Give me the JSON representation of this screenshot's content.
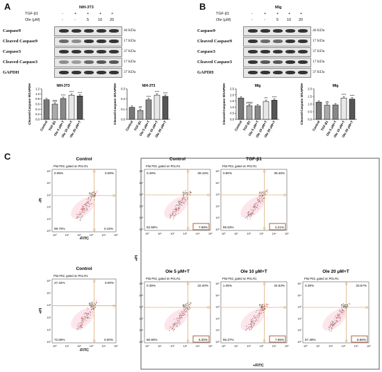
{
  "panel_labels": {
    "a": "A",
    "b": "B",
    "c": "C"
  },
  "western_a": {
    "cell": "NIH-3T3",
    "treatments": [
      {
        "label": "TGF-β1",
        "values": [
          "-",
          "+",
          "+",
          "+",
          "+"
        ]
      },
      {
        "label": "Ole (μM)",
        "values": [
          "-",
          "-",
          "5",
          "10",
          "20"
        ]
      }
    ],
    "rows": [
      {
        "label": "Caspase9",
        "kda": "46 KDa"
      },
      {
        "label": "Cleaved Caspase9",
        "kda": "17 KDa"
      },
      {
        "label": "Caspase3",
        "kda": "37 KDa"
      },
      {
        "label": "Cleaved Caspase3",
        "kda": "17 KDa"
      },
      {
        "label": "GAPDH",
        "kda": "37 KDa"
      }
    ]
  },
  "western_b": {
    "cell": "Mlg",
    "treatments": [
      {
        "label": "TGF-β1",
        "values": [
          "-",
          "+",
          "+",
          "+",
          "+"
        ]
      },
      {
        "label": "Ole (μM)",
        "values": [
          "-",
          "-",
          "5",
          "10",
          "20"
        ]
      }
    ],
    "rows": [
      {
        "label": "Caspase9",
        "kda": "46 KDa"
      },
      {
        "label": "Cleaved Caspase9",
        "kda": "17 KDa"
      },
      {
        "label": "Caspase3",
        "kda": "37 KDa"
      },
      {
        "label": "Cleaved Caspase3",
        "kda": "17 KDa"
      },
      {
        "label": "GAPDH",
        "kda": "37 KDa"
      }
    ]
  },
  "chart_data": [
    {
      "type": "bar",
      "title": "NIH-3T3",
      "ylabel": "Cleaved-Caspase 9/GAPDH",
      "ylim": [
        0,
        1.2
      ],
      "yticks": [
        "0.0",
        "0.2",
        "0.4",
        "0.6",
        "0.8",
        "1.0",
        "1.2"
      ],
      "ytick_values": [
        0,
        0.2,
        0.4,
        0.6,
        0.8,
        1.0,
        1.2
      ],
      "categories": [
        "Control",
        "TGF-β1",
        "Ole 5 μM+T",
        "Ole 10 μM+T",
        "Ole 20 μM+T"
      ],
      "values": [
        0.77,
        0.6,
        0.82,
        0.95,
        0.92
      ],
      "annotations": [
        "",
        "###",
        "****",
        "****",
        "****"
      ],
      "colors": [
        "#777777",
        "#aaaaaa",
        "#888888",
        "#e8e8e8",
        "#555555"
      ]
    },
    {
      "type": "bar",
      "title": "NIH-3T3",
      "ylabel": "Cleaved-Caspase 3/GAPDH",
      "ylim": [
        0,
        0.3
      ],
      "yticks": [
        "0.0",
        "0.1",
        "0.2",
        "0.3"
      ],
      "ytick_values": [
        0,
        0.1,
        0.2,
        0.3
      ],
      "categories": [
        "Control",
        "TGF-β1",
        "Ole 5 μM+T",
        "Ole 10 μM+T",
        "Ole 20 μM+T"
      ],
      "values": [
        0.118,
        0.087,
        0.192,
        0.238,
        0.226
      ],
      "annotations": [
        "",
        "##",
        "****",
        "****",
        "****"
      ],
      "colors": [
        "#777777",
        "#aaaaaa",
        "#888888",
        "#e8e8e8",
        "#555555"
      ]
    },
    {
      "type": "bar",
      "title": "Mlg",
      "ylabel": "Cleaved-Caspase 9/GAPDH",
      "ylim": [
        0,
        2.5
      ],
      "yticks": [
        "0.0",
        "0.5",
        "1.0",
        "1.5",
        "2.0",
        "2.5"
      ],
      "ytick_values": [
        0,
        0.5,
        1.0,
        1.5,
        2.0,
        2.5
      ],
      "categories": [
        "Control",
        "TGF-β1",
        "Ole 5 μM+T",
        "Ole 10 μM+T",
        "Ole 20 μM+T"
      ],
      "values": [
        1.75,
        1.12,
        1.1,
        1.47,
        1.57
      ],
      "annotations": [
        "",
        "####",
        "",
        "***",
        "****"
      ],
      "colors": [
        "#777777",
        "#aaaaaa",
        "#888888",
        "#e8e8e8",
        "#555555"
      ]
    },
    {
      "type": "bar",
      "title": "Mlg",
      "ylabel": "Cleaved-Caspase 3/GAPDH",
      "ylim": [
        0,
        2.0
      ],
      "yticks": [
        "0.0",
        "0.5",
        "1.0",
        "1.5",
        "2.0"
      ],
      "ytick_values": [
        0,
        0.5,
        1.0,
        1.5,
        2.0
      ],
      "categories": [
        "Control",
        "TGF-β1",
        "Ole 5 μM+T",
        "Ole 10 μM+T",
        "Ole 20 μM+T"
      ],
      "values": [
        1.13,
        0.93,
        0.95,
        1.4,
        1.33
      ],
      "annotations": [
        "",
        "##",
        "",
        "****",
        "****"
      ],
      "colors": [
        "#777777",
        "#aaaaaa",
        "#888888",
        "#e8e8e8",
        "#555555"
      ]
    }
  ],
  "flow": {
    "subtitle": "Plot P02, gated on P01.R1",
    "gate_label": "R2",
    "xaxis": "-FITC",
    "yaxis": "-PI",
    "xaxis_main": "+FITC",
    "yaxis_main": "+PI",
    "ticks": [
      "10⁰",
      "10¹",
      "10²",
      "10³",
      "10⁴",
      "10⁵"
    ],
    "single": [
      {
        "title": "Control",
        "q": [
          "0.08%",
          "0.08%",
          "99.70%",
          "0.15%"
        ]
      },
      {
        "title": "Control",
        "q": [
          "27.32%",
          "0.00%",
          "72.68%",
          "0.00%"
        ]
      }
    ],
    "grid": [
      {
        "title": "Control",
        "q": [
          "0.28%",
          "39.16%",
          "52.58%",
          "7.98%"
        ]
      },
      {
        "title": "TGF-β1",
        "q": [
          "0.80%",
          "39.46%",
          "55.53%",
          "4.21%"
        ]
      },
      {
        "title": "Ole 5 μM+T",
        "q": [
          "0.39%",
          "32.40%",
          "60.90%",
          "6.30%"
        ]
      },
      {
        "title": "Ole 10 μM+T",
        "q": [
          "1.05%",
          "34.63%",
          "56.37%",
          "7.95%"
        ]
      },
      {
        "title": "Ole 20 μM+T",
        "q": [
          "0.39%",
          "33.57%",
          "57.38%",
          "8.66%"
        ]
      }
    ],
    "highlight_color": "#a0522d",
    "gate_color": "#d4a060"
  }
}
